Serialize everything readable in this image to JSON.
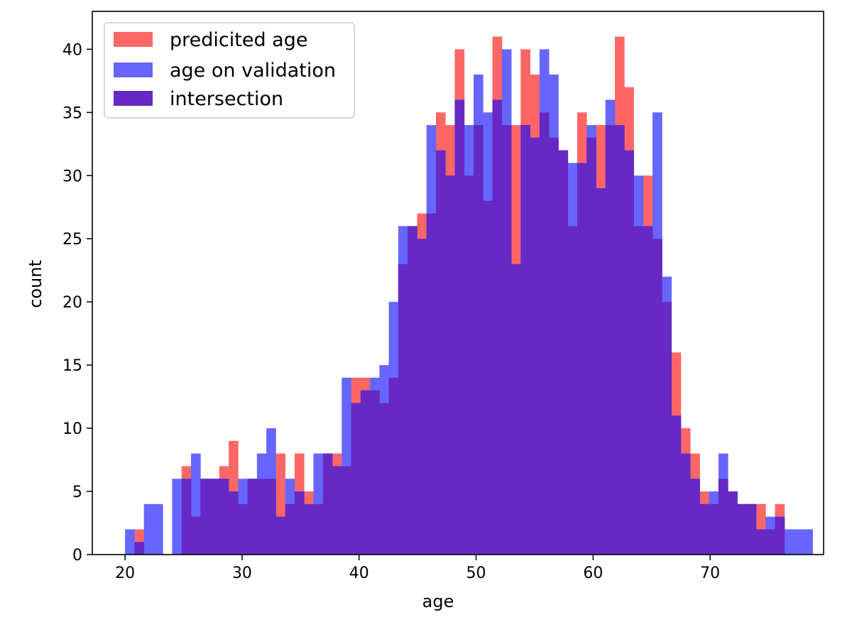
{
  "chart_data": {
    "type": "bar",
    "title": "",
    "xlabel": "age",
    "ylabel": "count",
    "xlim": [
      17.2,
      79.7
    ],
    "ylim": [
      0,
      43
    ],
    "xticks": [
      20,
      30,
      40,
      50,
      60,
      70
    ],
    "yticks": [
      0,
      5,
      10,
      15,
      20,
      25,
      30,
      35,
      40
    ],
    "grid": false,
    "legend_position": "top-left",
    "bin_start": 20.0,
    "bin_width": 0.805,
    "colors": {
      "predicted": "#ff6666",
      "validation": "#6666ff",
      "intersection": "#6629c4"
    },
    "series": [
      {
        "name": "predicited age",
        "values": [
          0,
          2,
          0,
          0,
          0,
          0,
          7,
          3,
          6,
          6,
          7,
          9,
          4,
          6,
          6,
          6,
          8,
          4,
          8,
          5,
          4,
          8,
          8,
          7,
          14,
          14,
          13,
          12,
          14,
          23,
          26,
          27,
          27,
          35,
          34,
          40,
          30,
          34,
          28,
          41,
          34,
          34,
          40,
          38,
          35,
          33,
          32,
          26,
          35,
          33,
          34,
          34,
          41,
          37,
          26,
          30,
          25,
          20,
          16,
          10,
          8,
          5,
          4,
          6,
          5,
          4,
          4,
          4,
          2,
          4,
          0,
          0,
          0
        ]
      },
      {
        "name": "age on validation",
        "values": [
          2,
          1,
          4,
          4,
          0,
          6,
          6,
          8,
          6,
          6,
          6,
          5,
          6,
          6,
          8,
          10,
          3,
          6,
          5,
          4,
          8,
          8,
          7,
          14,
          12,
          13,
          14,
          15,
          20,
          26,
          26,
          25,
          34,
          32,
          30,
          36,
          34,
          38,
          35,
          36,
          40,
          23,
          34,
          33,
          40,
          38,
          32,
          31,
          31,
          34,
          29,
          36,
          34,
          32,
          30,
          26,
          35,
          22,
          11,
          8,
          6,
          4,
          5,
          8,
          5,
          4,
          4,
          2,
          3,
          3,
          2,
          2,
          2
        ]
      },
      {
        "name": "intersection",
        "values": [
          0,
          1,
          0,
          0,
          0,
          0,
          6,
          3,
          6,
          6,
          6,
          5,
          4,
          6,
          6,
          6,
          3,
          4,
          5,
          4,
          4,
          8,
          7,
          7,
          12,
          13,
          13,
          12,
          14,
          23,
          26,
          25,
          27,
          32,
          30,
          36,
          30,
          34,
          28,
          36,
          34,
          23,
          34,
          33,
          35,
          33,
          32,
          26,
          31,
          33,
          29,
          34,
          34,
          32,
          26,
          26,
          25,
          20,
          11,
          8,
          6,
          4,
          4,
          6,
          5,
          4,
          4,
          2,
          2,
          3,
          0,
          0,
          0
        ]
      }
    ]
  }
}
